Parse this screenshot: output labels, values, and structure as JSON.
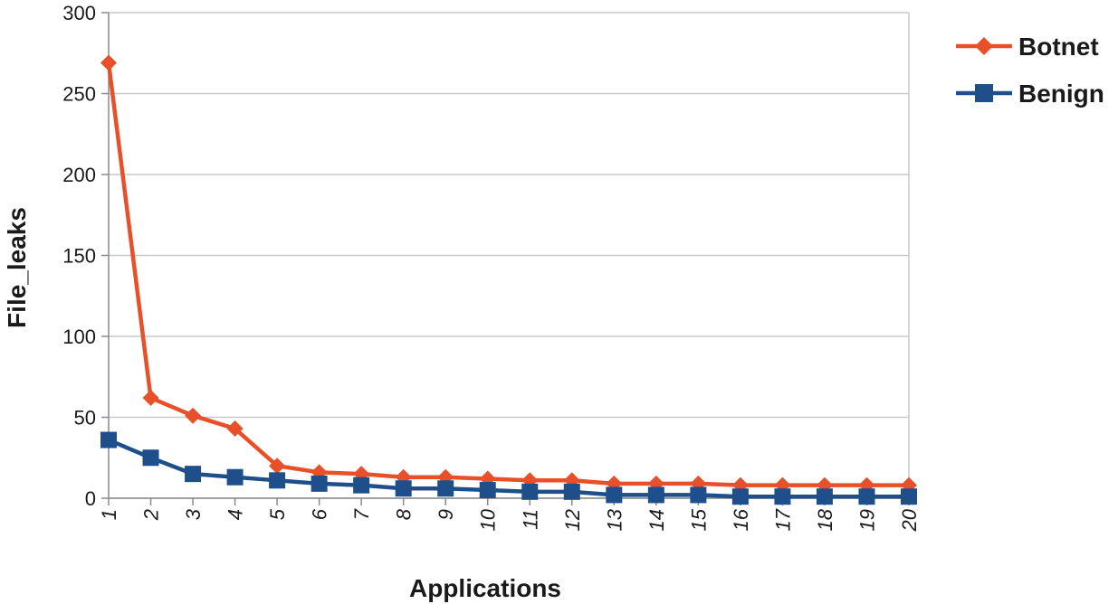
{
  "chart_data": {
    "type": "line",
    "title": "",
    "xlabel": "Applications",
    "ylabel": "File_leaks",
    "x": [
      1,
      2,
      3,
      4,
      5,
      6,
      7,
      8,
      9,
      10,
      11,
      12,
      13,
      14,
      15,
      16,
      17,
      18,
      19,
      20
    ],
    "x_tick_labels": [
      "1",
      "2",
      "3",
      "4",
      "5",
      "6",
      "7",
      "8",
      "9",
      "10",
      "11",
      "12",
      "13",
      "14",
      "15",
      "16",
      "17",
      "18",
      "19",
      "20"
    ],
    "ylim": [
      0,
      300
    ],
    "y_ticks": [
      0,
      50,
      100,
      150,
      200,
      250,
      300
    ],
    "y_tick_labels": [
      "0",
      "50",
      "100",
      "150",
      "200",
      "250",
      "300"
    ],
    "grid": true,
    "legend_position": "right",
    "series": [
      {
        "name": "Botnet",
        "marker": "diamond",
        "color": "#e8502a",
        "values": [
          269,
          62,
          51,
          43,
          20,
          16,
          15,
          13,
          13,
          12,
          11,
          11,
          9,
          9,
          9,
          8,
          8,
          8,
          8,
          8
        ]
      },
      {
        "name": "Benign",
        "marker": "square",
        "color": "#1f4f8a",
        "values": [
          36,
          25,
          15,
          13,
          11,
          9,
          8,
          6,
          6,
          5,
          4,
          4,
          2,
          2,
          2,
          1,
          1,
          1,
          1,
          1
        ]
      }
    ]
  }
}
